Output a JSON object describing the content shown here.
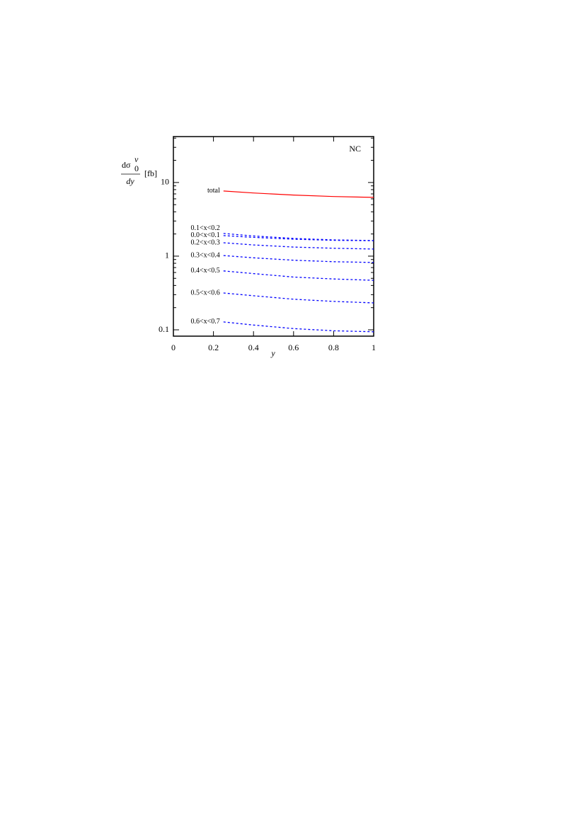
{
  "chart_data": {
    "type": "line",
    "annotation": "NC",
    "xlabel": "y",
    "ylabel": {
      "base": "dσ",
      "sub": "0",
      "sup": "ν",
      "denominator": "dy",
      "unit": "[fb]"
    },
    "x": [
      0.25,
      0.4,
      0.6,
      0.8,
      1.0
    ],
    "xlim": [
      0,
      1
    ],
    "xticks": [
      0,
      0.2,
      0.4,
      0.6,
      0.8,
      1
    ],
    "ylim": [
      0.082,
      42
    ],
    "yticks": [
      0.1,
      1,
      10
    ],
    "yminor_ticks": [
      0.2,
      0.3,
      0.4,
      0.5,
      0.6,
      0.7,
      0.8,
      0.9,
      2,
      3,
      4,
      5,
      6,
      7,
      8,
      9,
      20,
      30,
      40
    ],
    "log_y": true,
    "series": [
      {
        "name": "total",
        "color": "#ff0000",
        "dashed": false,
        "values": [
          7.67,
          7.2,
          6.75,
          6.45,
          6.28
        ]
      },
      {
        "name": "0.1<x<0.2",
        "color": "#0000ff",
        "dashed": true,
        "values": [
          2.03,
          1.88,
          1.74,
          1.66,
          1.63
        ]
      },
      {
        "name": "0.0<x<0.1",
        "color": "#0000ff",
        "dashed": true,
        "values": [
          1.9,
          1.8,
          1.7,
          1.64,
          1.62
        ]
      },
      {
        "name": "0.2<x<0.3",
        "color": "#0000ff",
        "dashed": true,
        "values": [
          1.52,
          1.42,
          1.33,
          1.28,
          1.25
        ]
      },
      {
        "name": "0.3<x<0.4",
        "color": "#0000ff",
        "dashed": true,
        "values": [
          1.02,
          0.95,
          0.88,
          0.84,
          0.82
        ]
      },
      {
        "name": "0.4<x<0.5",
        "color": "#0000ff",
        "dashed": true,
        "values": [
          0.63,
          0.58,
          0.52,
          0.49,
          0.47
        ]
      },
      {
        "name": "0.5<x<0.6",
        "color": "#0000ff",
        "dashed": true,
        "values": [
          0.316,
          0.29,
          0.26,
          0.243,
          0.232
        ]
      },
      {
        "name": "0.6<x<0.7",
        "color": "#0000ff",
        "dashed": true,
        "values": [
          0.128,
          0.116,
          0.104,
          0.097,
          0.094
        ]
      }
    ]
  }
}
